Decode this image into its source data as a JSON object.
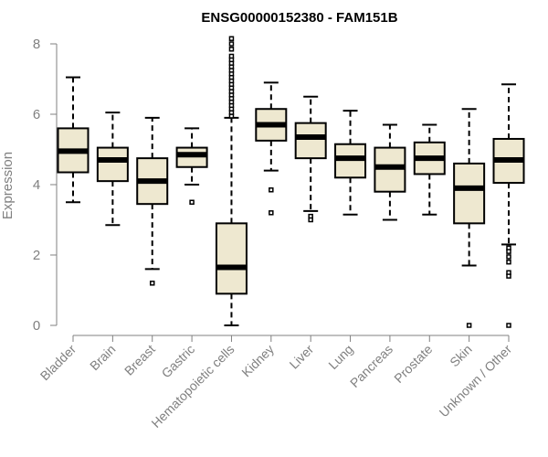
{
  "chart_data": {
    "type": "boxplot",
    "title": "ENSG00000152380 - FAM151B",
    "xlabel": "",
    "ylabel": "Expression",
    "ylim": [
      0,
      8
    ],
    "yticks": [
      0,
      2,
      4,
      6,
      8
    ],
    "grid": false,
    "colors": {
      "box_fill": "#EEE8D0",
      "stroke": "#000000",
      "axis": "#808080"
    },
    "categories": [
      "Bladder",
      "Brain",
      "Breast",
      "Gastric",
      "Hematopoietic cells",
      "Kidney",
      "Liver",
      "Lung",
      "Pancreas",
      "Prostate",
      "Skin",
      "Unknown / Other"
    ],
    "boxes": [
      {
        "name": "Bladder",
        "whislo": 3.5,
        "q1": 4.35,
        "med": 4.95,
        "q3": 5.6,
        "whishi": 7.05,
        "outliers": []
      },
      {
        "name": "Brain",
        "whislo": 2.85,
        "q1": 4.1,
        "med": 4.7,
        "q3": 5.05,
        "whishi": 6.05,
        "outliers": []
      },
      {
        "name": "Breast",
        "whislo": 1.6,
        "q1": 3.45,
        "med": 4.1,
        "q3": 4.75,
        "whishi": 5.9,
        "outliers": [
          1.2
        ]
      },
      {
        "name": "Gastric",
        "whislo": 4.0,
        "q1": 4.5,
        "med": 4.85,
        "q3": 5.05,
        "whishi": 5.6,
        "outliers": [
          3.5
        ]
      },
      {
        "name": "Hematopoietic cells",
        "whislo": 0.0,
        "q1": 0.9,
        "med": 1.65,
        "q3": 2.9,
        "whishi": 5.9,
        "outliers": [
          5.95,
          6.05,
          6.15,
          6.25,
          6.35,
          6.45,
          6.55,
          6.65,
          6.75,
          6.85,
          6.95,
          7.05,
          7.15,
          7.25,
          7.35,
          7.45,
          7.55,
          7.65,
          7.85,
          8.0,
          8.15
        ]
      },
      {
        "name": "Kidney",
        "whislo": 4.4,
        "q1": 5.25,
        "med": 5.7,
        "q3": 6.15,
        "whishi": 6.9,
        "outliers": [
          3.85,
          3.2
        ]
      },
      {
        "name": "Liver",
        "whislo": 3.25,
        "q1": 4.75,
        "med": 5.35,
        "q3": 5.75,
        "whishi": 6.5,
        "outliers": [
          3.1,
          3.0
        ]
      },
      {
        "name": "Lung",
        "whislo": 3.15,
        "q1": 4.2,
        "med": 4.75,
        "q3": 5.15,
        "whishi": 6.1,
        "outliers": []
      },
      {
        "name": "Pancreas",
        "whislo": 3.0,
        "q1": 3.8,
        "med": 4.5,
        "q3": 5.05,
        "whishi": 5.7,
        "outliers": []
      },
      {
        "name": "Prostate",
        "whislo": 3.15,
        "q1": 4.3,
        "med": 4.75,
        "q3": 5.2,
        "whishi": 5.7,
        "outliers": []
      },
      {
        "name": "Skin",
        "whislo": 1.7,
        "q1": 2.9,
        "med": 3.9,
        "q3": 4.6,
        "whishi": 6.15,
        "outliers": [
          0.0
        ]
      },
      {
        "name": "Unknown / Other",
        "whislo": 2.3,
        "q1": 4.05,
        "med": 4.7,
        "q3": 5.3,
        "whishi": 6.85,
        "outliers": [
          2.2,
          2.1,
          1.95,
          1.8,
          1.5,
          1.4,
          0.0
        ]
      }
    ]
  }
}
